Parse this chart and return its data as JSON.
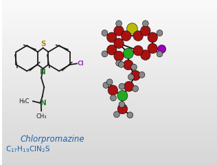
{
  "title": "Chlorpromazine",
  "formula_parts": [
    "C",
    "17",
    "H",
    "19",
    "ClN",
    "2",
    "S"
  ],
  "background_top": "#d8d8d8",
  "background_bottom": "#f8f8f8",
  "title_color": "#1a5fa8",
  "formula_color": "#1a5fa8",
  "sf": {
    "bond_color": "#1a1a1a",
    "S_color": "#b8860b",
    "N_color": "#2a7a2a",
    "Cl_color": "#9933bb",
    "lw": 1.3
  },
  "mol3d": {
    "C_color": "#aa1111",
    "H_color": "#888888",
    "S_color": "#bbbb00",
    "Cl_color": "#22aa22",
    "N_color": "#9900bb",
    "bond_color": "#111111"
  }
}
